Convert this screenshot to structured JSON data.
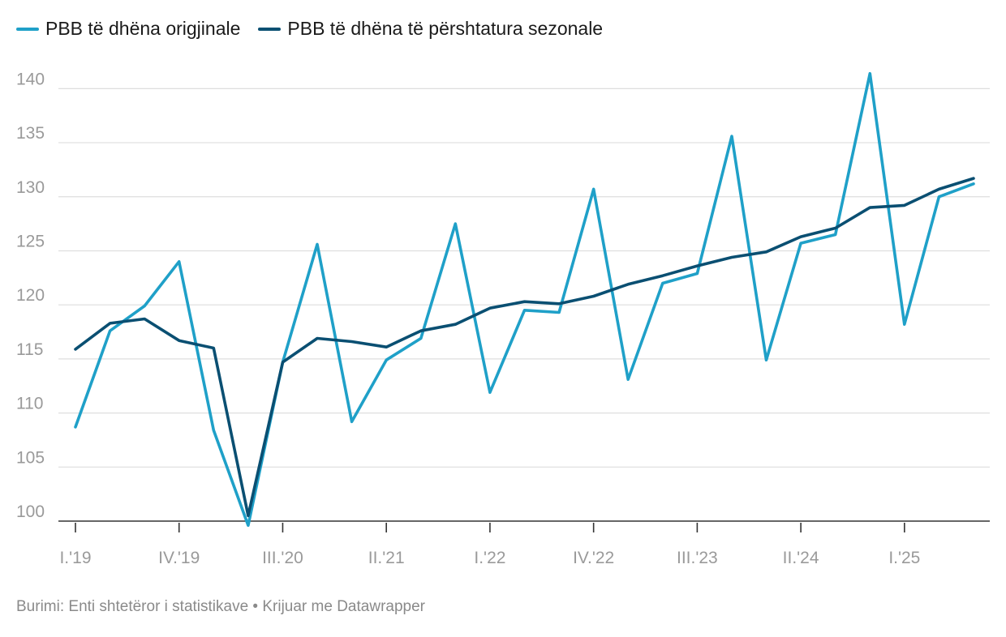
{
  "legend": {
    "items": [
      {
        "label": "PBB të dhëna origjinale",
        "color": "#1fa0c8"
      },
      {
        "label": "PBB të dhëna të përshtatura sezonale",
        "color": "#0a4f72"
      }
    ]
  },
  "footer": {
    "source": "Burimi: Enti shtetëror i statistikave • Krijuar me Datawrapper"
  },
  "chart_data": {
    "type": "line",
    "title": "",
    "xlabel": "",
    "ylabel": "",
    "ylim": [
      100,
      142.5
    ],
    "yticks": [
      100,
      105,
      110,
      115,
      120,
      125,
      130,
      135,
      140
    ],
    "grid": true,
    "legend_position": "top-left",
    "x": [
      "I.'19",
      "II.'19",
      "III.'19",
      "IV.'19",
      "I.'20",
      "II.'20",
      "III.'20",
      "IV.'20",
      "I.'21",
      "II.'21",
      "III.'21",
      "IV.'21",
      "I.'22",
      "II.'22",
      "III.'22",
      "IV.'22",
      "I.'23",
      "II.'23",
      "III.'23",
      "IV.'23",
      "I.'24",
      "II.'24",
      "III.'24",
      "IV.'24",
      "I.'25",
      "II.'25",
      "III.'25"
    ],
    "xtick_labels": [
      "I.'19",
      "IV.'19",
      "III.'20",
      "II.'21",
      "I.'22",
      "IV.'22",
      "III.'23",
      "II.'24",
      "I.'25"
    ],
    "xtick_indices": [
      0,
      3,
      6,
      9,
      12,
      15,
      18,
      21,
      24
    ],
    "series": [
      {
        "name": "PBB të dhëna origjinale",
        "color": "#1fa0c8",
        "values": [
          108.7,
          117.6,
          119.9,
          124.0,
          108.4,
          99.6,
          114.7,
          125.6,
          109.2,
          114.9,
          116.9,
          127.5,
          111.9,
          119.5,
          119.3,
          130.7,
          113.1,
          122.0,
          122.9,
          135.6,
          114.9,
          125.7,
          126.5,
          141.4,
          118.2,
          130.0,
          131.2
        ]
      },
      {
        "name": "PBB të dhëna të përshtatura sezonale",
        "color": "#0a4f72",
        "values": [
          115.9,
          118.3,
          118.7,
          116.7,
          116.0,
          100.5,
          114.7,
          116.9,
          116.6,
          116.1,
          117.6,
          118.2,
          119.7,
          120.3,
          120.1,
          120.8,
          121.9,
          122.7,
          123.6,
          124.4,
          124.9,
          126.3,
          127.1,
          129.0,
          129.2,
          130.7,
          131.7
        ]
      }
    ]
  }
}
